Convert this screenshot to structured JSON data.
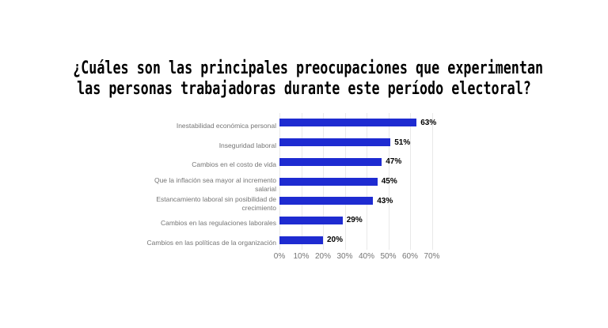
{
  "title": {
    "line1": "¿Cuáles son las principales preocupaciones que experimentan",
    "line2": "las personas trabajadoras durante este período electoral?"
  },
  "chart_data": {
    "type": "bar",
    "orientation": "horizontal",
    "title": "¿Cuáles son las principales preocupaciones que experimentan las personas trabajadoras durante este período electoral?",
    "categories": [
      "Inestabilidad económica personal",
      "Inseguridad laboral",
      "Cambios en el costo de vida",
      "Que la inflación sea mayor al incremento salarial",
      "Estancamiento laboral sin posibilidad de crecimiento",
      "Cambios en las regulaciones laborales",
      "Cambios en las políticas de la organización"
    ],
    "values": [
      63,
      51,
      47,
      45,
      43,
      29,
      20
    ],
    "value_labels": [
      "63%",
      "51%",
      "47%",
      "45%",
      "43%",
      "29%",
      "20%"
    ],
    "x_ticks": [
      "0%",
      "10%",
      "20%",
      "30%",
      "40%",
      "50%",
      "60%",
      "70%"
    ],
    "xlabel": "",
    "ylabel": "",
    "xlim": [
      0,
      70
    ],
    "grid": true,
    "legend": false
  },
  "colors": {
    "bar": "#1e2bd1",
    "category_label": "#757575",
    "axis_label": "#757575",
    "grid": "#e9e9e9",
    "value_label": "#000000",
    "title": "#000000",
    "background": "#ffffff"
  }
}
